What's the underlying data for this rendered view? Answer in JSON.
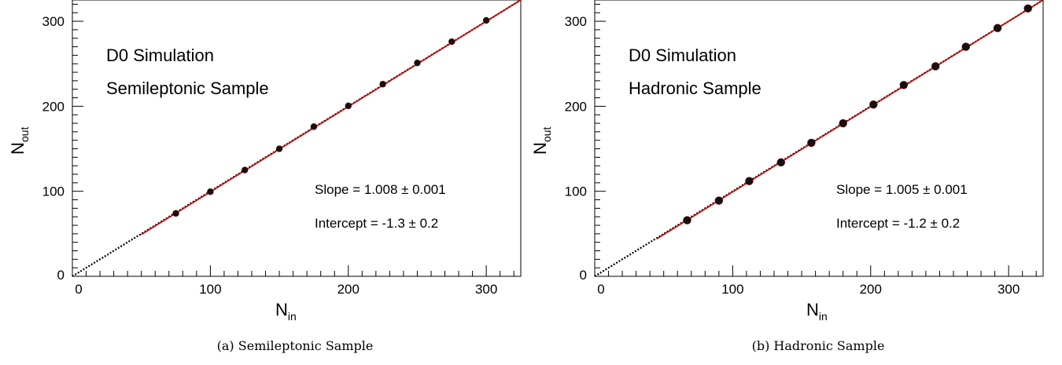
{
  "chart_data": [
    {
      "type": "scatter",
      "panel_label": "(a)",
      "caption": "Semileptonic Sample",
      "annotations": {
        "line1": "D0 Simulation",
        "line2": "Semileptonic Sample",
        "slope": "Slope = 1.008 ±  0.001",
        "intercept": "Intercept = -1.3 ±  0.2"
      },
      "xlabel": "N",
      "xlabel_sub": "in",
      "ylabel": "N",
      "ylabel_sub": "out",
      "xlim": [
        0,
        325
      ],
      "ylim": [
        0,
        325
      ],
      "xticks": [
        0,
        100,
        200,
        300
      ],
      "yticks": [
        0,
        100,
        200,
        300
      ],
      "x": [
        75,
        100,
        125,
        150,
        175,
        200,
        225,
        250,
        275,
        300
      ],
      "y": [
        74,
        99.5,
        125,
        150,
        176,
        200.5,
        226,
        251,
        276,
        301
      ],
      "fit": {
        "slope": 1.008,
        "intercept": -1.3,
        "from": 50
      },
      "colors": {
        "points": "#111111",
        "fit": "#cc0000",
        "diagonal": "#000000"
      }
    },
    {
      "type": "scatter",
      "panel_label": "(b)",
      "caption": "Hadronic Sample",
      "annotations": {
        "line1": "D0 Simulation",
        "line2": "Hadronic Sample",
        "slope": "Slope = 1.005 ±  0.001",
        "intercept": "Intercept = -1.2 ±  0.2"
      },
      "xlabel": "N",
      "xlabel_sub": "in",
      "ylabel": "N",
      "ylabel_sub": "out",
      "xlim": [
        0,
        325
      ],
      "ylim": [
        0,
        325
      ],
      "xticks": [
        0,
        100,
        200,
        300
      ],
      "yticks": [
        0,
        100,
        200,
        300
      ],
      "x": [
        67,
        90,
        112,
        135,
        157,
        180,
        202,
        224,
        247,
        269,
        292,
        314
      ],
      "y": [
        66,
        89,
        112,
        134,
        157,
        180,
        202,
        225,
        247,
        270,
        292,
        315
      ],
      "fit": {
        "slope": 1.005,
        "intercept": -1.2,
        "from": 45
      },
      "colors": {
        "points": "#111111",
        "fit": "#cc0000",
        "diagonal": "#000000"
      }
    }
  ]
}
